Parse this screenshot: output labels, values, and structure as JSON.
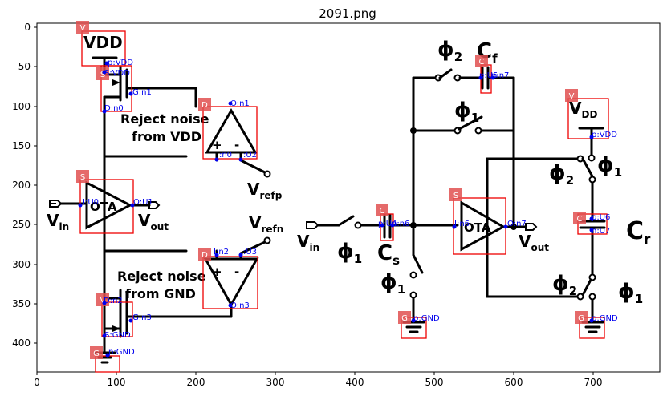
{
  "title": "2091.png",
  "axes": {
    "x_ticks": [
      "0",
      "100",
      "200",
      "300",
      "400",
      "500",
      "600",
      "700"
    ],
    "y_ticks": [
      "0",
      "50",
      "100",
      "150",
      "200",
      "250",
      "300",
      "350",
      "400"
    ]
  },
  "schematic_text": {
    "vdd_left": "VDD",
    "reject_vdd_1": "Reject noise",
    "reject_vdd_2": "from VDD",
    "reject_gnd_1": "Reject noise",
    "reject_gnd_2": "from GND",
    "vrefp": "V",
    "vrefp_sub": "refp",
    "vrefn": "V",
    "vrefn_sub": "refn",
    "vin_left": "V",
    "vin_left_sub": "in",
    "vout_left": "V",
    "vout_left_sub": "out",
    "ota_left": "OTA",
    "vin_right": "V",
    "vin_right_sub": "in",
    "phi1_a": "ϕ",
    "phi1_a_sub": "1",
    "cs": "C",
    "cs_sub": "s",
    "phi2_top": "ϕ",
    "phi2_top_sub": "2",
    "cf": "C",
    "cf_sub": "f",
    "phi1_top": "ϕ",
    "phi1_top_sub": "1",
    "phi1_mid": "ϕ",
    "phi1_mid_sub": "1",
    "ota_right": "OTA",
    "vout_right": "V",
    "vout_right_sub": "out",
    "vdd_right": "V",
    "vdd_right_sub": "DD",
    "phi2_right": "ϕ",
    "phi2_right_sub": "2",
    "phi1_right": "ϕ",
    "phi1_right_sub": "1",
    "cr": "C",
    "cr_sub": "r",
    "phi2_bot": "ϕ",
    "phi2_bot_sub": "2",
    "phi1_bot": "ϕ",
    "phi1_bot_sub": "1",
    "plus_top": "+",
    "minus_top": "-",
    "plus_bot": "+",
    "minus_bot": "-"
  },
  "annotations": {
    "tags": {
      "v_left": "V",
      "s_mos": "S",
      "d_top": "D",
      "s_ota_left": "S",
      "d_bot": "D",
      "v_mid": "V",
      "g_left": "G",
      "c_cf": "C",
      "v_right": "V",
      "c_cs": "C",
      "s_ota_right": "S",
      "c_cr": "C",
      "g_mid": "G",
      "g_right": "G"
    },
    "pins": {
      "p_vdd": "p:VDD",
      "s_vdd": "S:VDD",
      "g_n1": "G:n1",
      "d_n0": "D:n0",
      "o_n1": "O:n1",
      "i_n0": "I:n0",
      "i_u2": "I:U2",
      "i_u0": "I:U0",
      "o_u1": "O:U1",
      "i_n2": "I:n2",
      "i_u3": "I:U3",
      "o_n3": "O:n3",
      "d_n2": "D:n2",
      "g_n3": "G:n3",
      "s_gnd": "S:GND",
      "p_gnd_left": "p:GND",
      "cs_p": "p:U4",
      "cs_n": "n:n6",
      "cf_p": "p:U5",
      "cf_n": "n:n7",
      "i_n6": "I:n6",
      "o_n7": "O:n7",
      "p_vdd_right": "p:VDD",
      "cr_p": "p:U6",
      "cr_n": "n:U7",
      "p_gnd_mid": "p:GND",
      "p_gnd_right": "p:GND"
    }
  },
  "colors": {
    "box": "#ee0000",
    "tag_fill": "#e05050",
    "pin": "#0000ee",
    "wire": "#000000"
  }
}
